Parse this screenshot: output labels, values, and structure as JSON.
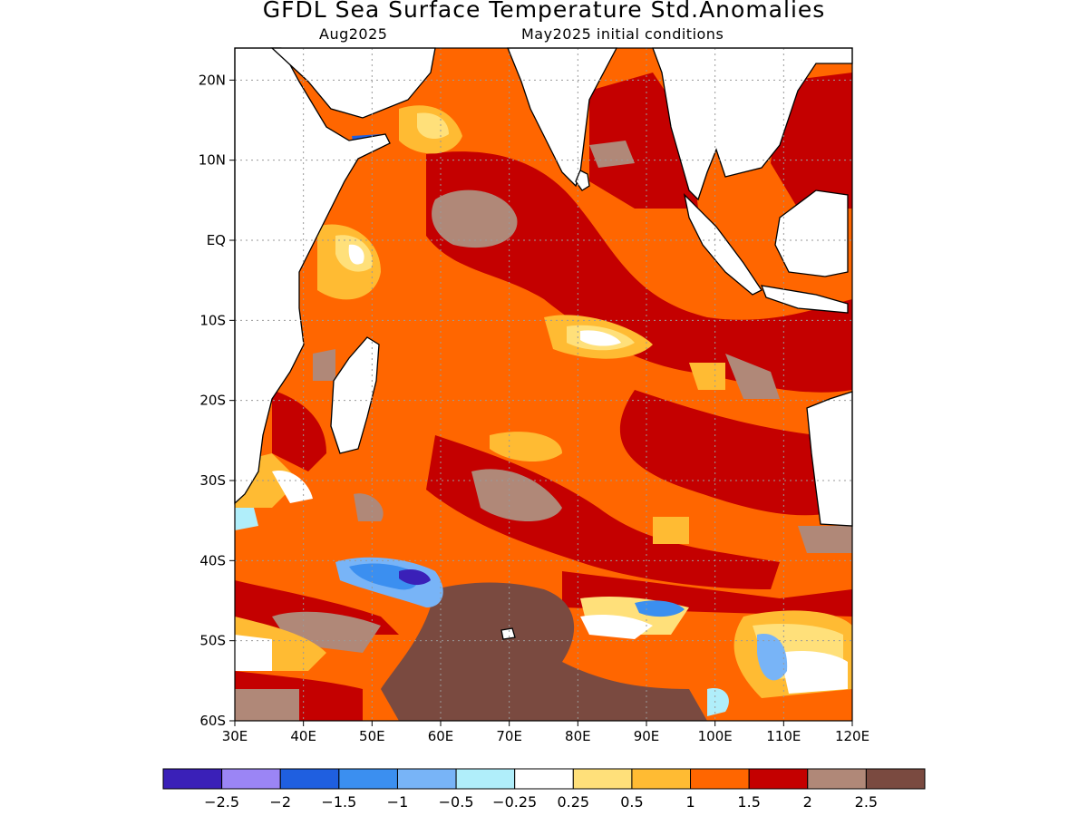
{
  "header": {
    "title": "GFDL Sea Surface Temperature Std.Anomalies",
    "subtitle_left": "Aug2025",
    "subtitle_right": "May2025 initial conditions"
  },
  "chart_data": {
    "type": "heatmap",
    "x_ticks": [
      "30E",
      "40E",
      "50E",
      "60E",
      "70E",
      "80E",
      "90E",
      "100E",
      "110E",
      "120E"
    ],
    "y_ticks": [
      "20N",
      "10N",
      "EQ",
      "10S",
      "20S",
      "30S",
      "40S",
      "50S",
      "60S"
    ],
    "lon_range": [
      30,
      120
    ],
    "lat_range": [
      -60,
      24
    ],
    "grid": true,
    "colorbar": {
      "placement": "bottom",
      "colors": [
        "#3a20b8",
        "#9b85f5",
        "#1f5fe0",
        "#3b8ff0",
        "#78b4f7",
        "#b0eefa",
        "#ffffff",
        "#ffe07a",
        "#ffbb33",
        "#ff6600",
        "#c40000",
        "#b08878",
        "#7a4a40"
      ],
      "labels": [
        "-2.5",
        "-2",
        "-1.5",
        "-1",
        "-0.5",
        "-0.25",
        "0.25",
        "0.5",
        "1",
        "1.5",
        "2",
        "2.5"
      ]
    }
  }
}
